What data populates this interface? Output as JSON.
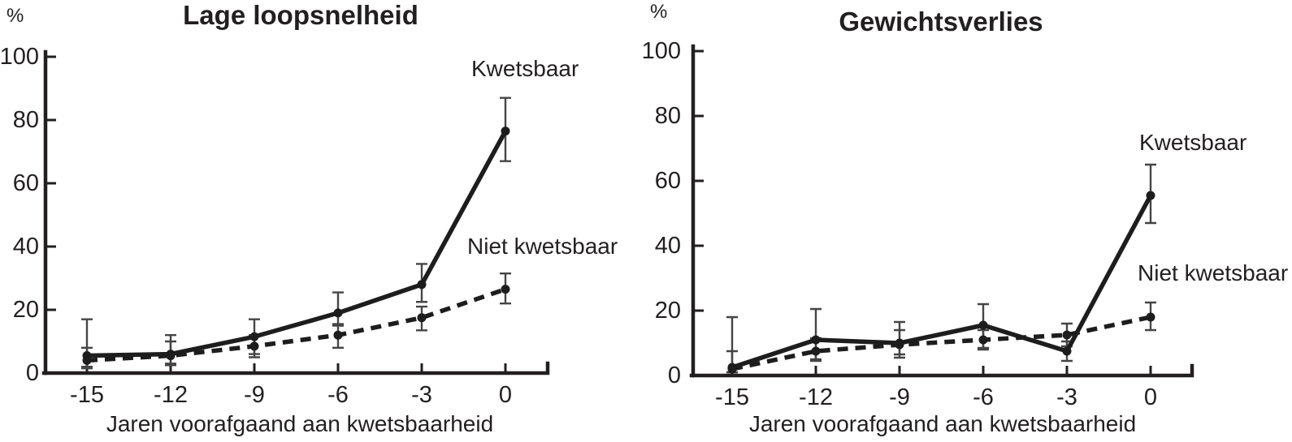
{
  "figure": {
    "ink_color": "#231f20",
    "error_bar_color": "#454545",
    "line_color": "#1d1d1d"
  },
  "chart_data": [
    {
      "type": "line",
      "title": "Lage loopsnelheid",
      "y_unit": "%",
      "xlabel": "Jaren voorafgaand aan kwetsbaarheid",
      "x": [
        -15,
        -12,
        -9,
        -6,
        -3,
        0
      ],
      "y_ticks": [
        0,
        20,
        40,
        60,
        80,
        100
      ],
      "ylim": [
        0,
        100
      ],
      "grid": false,
      "legend_position": "inline-labels",
      "series": [
        {
          "name": "Kwetsbaar",
          "style": "solid",
          "values": [
            5.5,
            6,
            11.5,
            19,
            28,
            76.5
          ],
          "err_low": [
            1.5,
            3,
            5,
            15.5,
            22.5,
            67
          ],
          "err_high": [
            17,
            12,
            17,
            25.5,
            34.5,
            87
          ]
        },
        {
          "name": "Niet kwetsbaar",
          "style": "dashed",
          "values": [
            4,
            5.5,
            8.5,
            12,
            17.5,
            26.5
          ],
          "err_low": [
            2,
            2.5,
            6,
            8,
            13.5,
            22
          ],
          "err_high": [
            8,
            10,
            12,
            15,
            21,
            31.5
          ]
        }
      ]
    },
    {
      "type": "line",
      "title": "Gewichtsverlies",
      "y_unit": "%",
      "xlabel": "Jaren voorafgaand aan kwetsbaarheid",
      "x": [
        -15,
        -12,
        -9,
        -6,
        -3,
        0
      ],
      "y_ticks": [
        0,
        20,
        40,
        60,
        80,
        100
      ],
      "ylim": [
        0,
        100
      ],
      "grid": false,
      "legend_position": "inline-labels",
      "series": [
        {
          "name": "Kwetsbaar",
          "style": "solid",
          "values": [
            2.5,
            11,
            10,
            15.5,
            7.5,
            55.5
          ],
          "err_low": [
            1,
            5,
            6.5,
            8.5,
            4.5,
            47
          ],
          "err_high": [
            18,
            20.5,
            16.5,
            22,
            10.5,
            65
          ]
        },
        {
          "name": "Niet kwetsbaar",
          "style": "dashed",
          "values": [
            2,
            7.5,
            9.5,
            11,
            12.5,
            18
          ],
          "err_low": [
            1,
            4.5,
            5.5,
            8,
            9,
            14
          ],
          "err_high": [
            7.5,
            11.5,
            14,
            14,
            16,
            22.5
          ]
        }
      ]
    }
  ]
}
